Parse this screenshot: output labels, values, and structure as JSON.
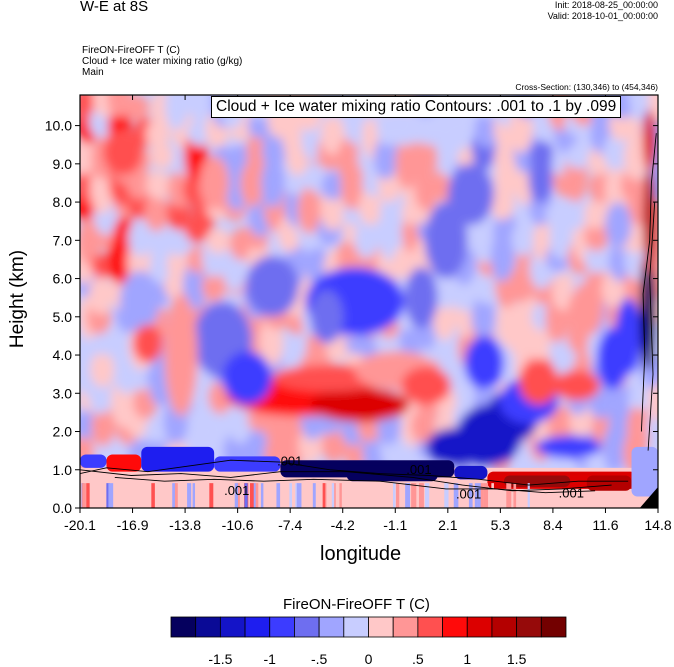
{
  "header": {
    "title": "W-E at 8S",
    "init": "Init: 2018-08-25_00:00:00",
    "valid": "Valid: 2018-10-01_00:00:00",
    "line1": "FireON-FireOFF T   (C)",
    "line2": "Cloud + Ice water mixing ratio   (g/kg)",
    "line3": "Main",
    "cross_section": "Cross-Section: (130,346) to (454,346)"
  },
  "chart_data": {
    "type": "heatmap",
    "title": "W-E at 8S",
    "xlabel": "longitude",
    "ylabel": "Height (km)",
    "x_ticks": [
      "-20.1",
      "-16.9",
      "-13.8",
      "-10.6",
      "-7.4",
      "-4.2",
      "-1.1",
      "2.1",
      "5.3",
      "8.4",
      "11.6",
      "14.8"
    ],
    "y_ticks": [
      "0.0",
      "1.0",
      "2.0",
      "3.0",
      "4.0",
      "5.0",
      "6.0",
      "7.0",
      "8.0",
      "9.0",
      "10.0"
    ],
    "xlim": [
      -20.1,
      14.8
    ],
    "ylim": [
      0.0,
      10.8
    ],
    "contour_info": "Cloud + Ice water mixing ratio Contours: .001 to .1 by .099",
    "contour_labels": [
      ".001",
      ".001",
      ".001",
      ".001",
      ".001"
    ],
    "colorbar": {
      "title": "FireON-FireOFF T  (C)",
      "tick_labels": [
        "-1.5",
        "-1",
        "-.5",
        "0",
        ".5",
        "1",
        "1.5"
      ],
      "levels": [
        -1.75,
        -1.5,
        -1.25,
        -1.0,
        -0.75,
        -0.5,
        -0.25,
        0,
        0.25,
        0.5,
        0.75,
        1.0,
        1.25,
        1.5,
        1.75
      ],
      "colors": [
        "#05005e",
        "#0a0a96",
        "#1414c8",
        "#1e1ef0",
        "#3c3cff",
        "#6e6ef0",
        "#a0a5ff",
        "#c8cdff",
        "#ffc8c8",
        "#ff9696",
        "#ff5050",
        "#ff0a0a",
        "#dc0000",
        "#b40000",
        "#960a0a",
        "#730000"
      ]
    }
  }
}
